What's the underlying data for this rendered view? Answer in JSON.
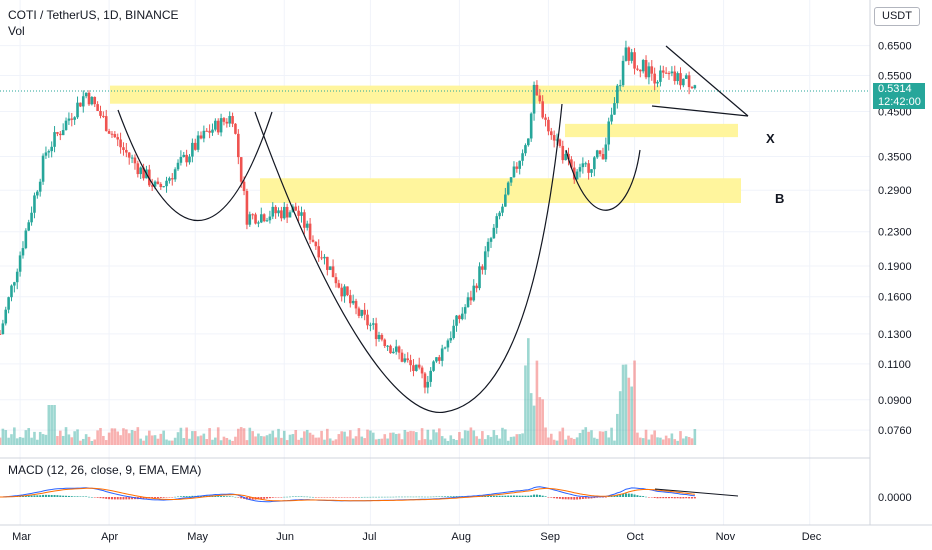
{
  "header": {
    "symbol_line": "COTI / TetherUS, 1D, BINANCE",
    "volume_label": "Vol"
  },
  "price_axis": {
    "unit": "USDT",
    "ticks": [
      "0.6500",
      "0.5500",
      "0.4500",
      "0.3500",
      "0.2900",
      "0.2300",
      "0.1900",
      "0.1600",
      "0.1300",
      "0.1100",
      "0.0900",
      "0.0760"
    ]
  },
  "last_price": {
    "price": "0.5314",
    "countdown": "12:42:00"
  },
  "macd": {
    "title": "MACD (12, 26, close, 9, EMA, EMA)",
    "tick": "0.0000"
  },
  "annotations": {
    "x_label": "X",
    "b_label": "B"
  },
  "colors": {
    "up": "#26a69a",
    "down": "#ef5350",
    "zone": "#fff59d",
    "macd_line": "#2962ff",
    "signal_line": "#ff6d00",
    "grid": "#f0f3fa"
  },
  "chart_data": {
    "type": "candlestick",
    "title": "COTI / TetherUS, 1D, BINANCE",
    "y_scale": "log",
    "ylim": [
      0.068,
      0.75
    ],
    "x_tick_labels": [
      "Mar",
      "Apr",
      "May",
      "Jun",
      "Jul",
      "Aug",
      "Sep",
      "Oct",
      "Nov",
      "Dec"
    ],
    "x_range": [
      "2021-02-22",
      "2021-12-22"
    ],
    "series": [
      {
        "name": "price",
        "close_keypoints": [
          {
            "date": "2021-02-22",
            "value": 0.13
          },
          {
            "date": "2021-03-10",
            "value": 0.36
          },
          {
            "date": "2021-03-24",
            "value": 0.5
          },
          {
            "date": "2021-04-05",
            "value": 0.37
          },
          {
            "date": "2021-04-18",
            "value": 0.29
          },
          {
            "date": "2021-05-05",
            "value": 0.4
          },
          {
            "date": "2021-05-14",
            "value": 0.44
          },
          {
            "date": "2021-05-19",
            "value": 0.25
          },
          {
            "date": "2021-06-05",
            "value": 0.26
          },
          {
            "date": "2021-06-25",
            "value": 0.15
          },
          {
            "date": "2021-07-20",
            "value": 0.1
          },
          {
            "date": "2021-08-05",
            "value": 0.16
          },
          {
            "date": "2021-08-25",
            "value": 0.4
          },
          {
            "date": "2021-08-27",
            "value": 0.5
          },
          {
            "date": "2021-09-10",
            "value": 0.31
          },
          {
            "date": "2021-09-20",
            "value": 0.36
          },
          {
            "date": "2021-09-25",
            "value": 0.5
          },
          {
            "date": "2021-09-28",
            "value": 0.62
          },
          {
            "date": "2021-10-08",
            "value": 0.55
          },
          {
            "date": "2021-10-22",
            "value": 0.53
          }
        ]
      }
    ],
    "zones": [
      {
        "name": "upper-resistance",
        "low": 0.47,
        "high": 0.52
      },
      {
        "name": "x-zone",
        "low": 0.39,
        "high": 0.42
      },
      {
        "name": "b-zone",
        "low": 0.27,
        "high": 0.31
      }
    ],
    "volume_spikes": [
      {
        "date": "2021-08-27",
        "relative": 1.0
      },
      {
        "date": "2021-09-28",
        "relative": 0.85
      }
    ],
    "grid": true
  }
}
